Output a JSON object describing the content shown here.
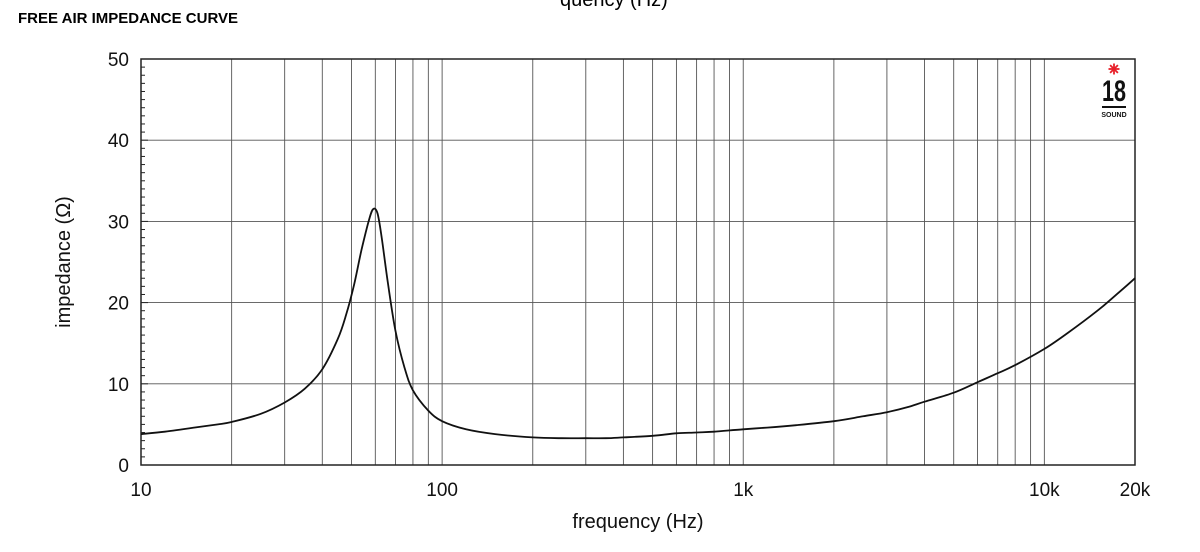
{
  "page_title": "FREE AIR IMPEDANCE CURVE",
  "top_clipped_text": "quency (Hz)",
  "logo": {
    "number": "18",
    "text": "SOUND",
    "star_color": "#e8202a"
  },
  "chart_data": {
    "type": "line",
    "title": "",
    "xlabel": "frequency (Hz)",
    "ylabel": "impedance (Ω)",
    "x_scale": "log",
    "xlim": [
      10,
      20000
    ],
    "ylim": [
      0,
      50
    ],
    "grid": true,
    "x_ticks": [
      {
        "value": 10,
        "label": "10"
      },
      {
        "value": 100,
        "label": "100"
      },
      {
        "value": 1000,
        "label": "1k"
      },
      {
        "value": 10000,
        "label": "10k"
      },
      {
        "value": 20000,
        "label": "20k"
      }
    ],
    "y_ticks": [
      {
        "value": 0,
        "label": "0"
      },
      {
        "value": 10,
        "label": "10"
      },
      {
        "value": 20,
        "label": "20"
      },
      {
        "value": 30,
        "label": "30"
      },
      {
        "value": 40,
        "label": "40"
      },
      {
        "value": 50,
        "label": "50"
      }
    ],
    "series": [
      {
        "x": [
          10,
          12,
          15,
          18,
          20,
          25,
          30,
          35,
          40,
          45,
          48,
          51,
          54,
          57,
          59,
          61,
          63,
          66,
          70,
          75,
          80,
          90,
          100,
          120,
          150,
          200,
          250,
          300,
          350,
          400,
          500,
          600,
          700,
          800,
          1000,
          1200,
          1500,
          2000,
          2500,
          3000,
          3500,
          4000,
          5000,
          6000,
          7000,
          8000,
          10000,
          12000,
          15000,
          17000,
          20000
        ],
        "y": [
          3.8,
          4.1,
          4.6,
          5.0,
          5.3,
          6.3,
          7.7,
          9.4,
          11.8,
          15.5,
          18.5,
          22.2,
          26.5,
          30.0,
          31.5,
          31.0,
          28.0,
          22.5,
          16.5,
          12.0,
          9.2,
          6.7,
          5.4,
          4.4,
          3.8,
          3.4,
          3.3,
          3.3,
          3.3,
          3.4,
          3.6,
          3.9,
          4.0,
          4.1,
          4.4,
          4.6,
          4.9,
          5.4,
          6.0,
          6.5,
          7.1,
          7.8,
          8.9,
          10.2,
          11.3,
          12.3,
          14.3,
          16.3,
          19.0,
          20.7,
          23.0
        ]
      }
    ]
  }
}
